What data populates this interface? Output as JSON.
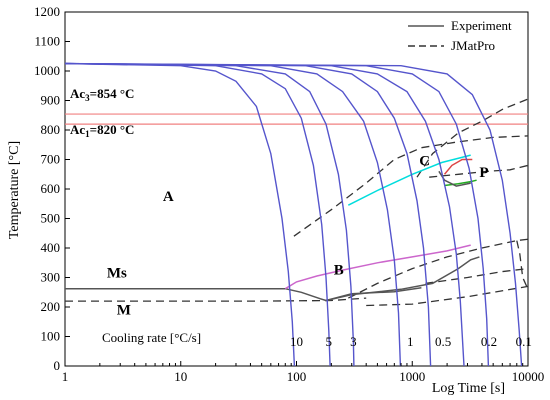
{
  "chart_data": {
    "type": "line",
    "xlabel": "Log Time [s]",
    "ylabel": "Temperature [°C]",
    "x_scale": "log",
    "xlim": [
      1,
      10000
    ],
    "ylim": [
      0,
      1200
    ],
    "x_ticks": [
      {
        "value": 1,
        "label": "1"
      },
      {
        "value": 10,
        "label": "10"
      },
      {
        "value": 100,
        "label": "100"
      },
      {
        "value": 1000,
        "label": "1000"
      },
      {
        "value": 10000,
        "label": "10000"
      }
    ],
    "y_ticks": [
      0,
      100,
      200,
      300,
      400,
      500,
      600,
      700,
      800,
      900,
      1000,
      1100,
      1200
    ],
    "grid": false,
    "legend": {
      "placement": "top-right",
      "entries": [
        {
          "label": "Experiment",
          "style": "solid",
          "color": "#555555"
        },
        {
          "label": "JMatPro",
          "style": "dashed",
          "color": "#333333"
        }
      ]
    },
    "reference_lines": [
      {
        "label": "Ac3=854 °C",
        "label_main": "Ac",
        "label_sub": "3",
        "label_value": "=854 °C",
        "y": 854,
        "color": "#f08080"
      },
      {
        "label": "Ac1=820 °C",
        "label_main": "Ac",
        "label_sub": "1",
        "label_value": "=820 °C",
        "y": 820,
        "color": "#f08080"
      }
    ],
    "region_labels": [
      {
        "text": "A",
        "x": 7,
        "y": 560
      },
      {
        "text": "C",
        "x": 1150,
        "y": 680
      },
      {
        "text": "P",
        "x": 3800,
        "y": 640
      },
      {
        "text": "B",
        "x": 210,
        "y": 310
      },
      {
        "text": "Ms",
        "x": 2.3,
        "y": 300
      },
      {
        "text": "M",
        "x": 2.8,
        "y": 175
      }
    ],
    "cooling_rate_title": "Cooling rate [°C/s]",
    "cooling_rates": [
      {
        "label": "10",
        "x": 100
      },
      {
        "label": "5",
        "x": 190
      },
      {
        "label": "3",
        "x": 310
      },
      {
        "label": "1",
        "x": 960
      },
      {
        "label": "0.5",
        "x": 1850
      },
      {
        "label": "0.2",
        "x": 4600
      },
      {
        "label": "0.1",
        "x": 9200
      }
    ],
    "cooling_curves": [
      {
        "name": "c1",
        "points": [
          [
            1,
            1025
          ],
          [
            10,
            1018
          ],
          [
            20,
            1000
          ],
          [
            30,
            965
          ],
          [
            45,
            880
          ],
          [
            60,
            720
          ],
          [
            75,
            500
          ],
          [
            85,
            320
          ],
          [
            92,
            150
          ],
          [
            96,
            0
          ]
        ]
      },
      {
        "name": "c2",
        "points": [
          [
            1,
            1025
          ],
          [
            20,
            1018
          ],
          [
            50,
            990
          ],
          [
            80,
            940
          ],
          [
            110,
            840
          ],
          [
            140,
            680
          ],
          [
            165,
            480
          ],
          [
            180,
            300
          ],
          [
            190,
            120
          ],
          [
            195,
            0
          ]
        ]
      },
      {
        "name": "c3",
        "points": [
          [
            1,
            1025
          ],
          [
            30,
            1018
          ],
          [
            80,
            990
          ],
          [
            130,
            930
          ],
          [
            180,
            820
          ],
          [
            230,
            650
          ],
          [
            270,
            460
          ],
          [
            295,
            270
          ],
          [
            310,
            80
          ],
          [
            313,
            0
          ]
        ]
      },
      {
        "name": "c4",
        "points": [
          [
            1,
            1025
          ],
          [
            60,
            1018
          ],
          [
            150,
            990
          ],
          [
            250,
            930
          ],
          [
            380,
            830
          ],
          [
            500,
            690
          ],
          [
            610,
            530
          ],
          [
            700,
            360
          ],
          [
            760,
            180
          ],
          [
            790,
            0
          ]
        ]
      },
      {
        "name": "c5",
        "points": [
          [
            1,
            1025
          ],
          [
            120,
            1018
          ],
          [
            300,
            990
          ],
          [
            500,
            930
          ],
          [
            700,
            840
          ],
          [
            900,
            720
          ],
          [
            1100,
            560
          ],
          [
            1250,
            400
          ],
          [
            1380,
            200
          ],
          [
            1440,
            0
          ]
        ]
      },
      {
        "name": "c6",
        "points": [
          [
            1,
            1025
          ],
          [
            200,
            1018
          ],
          [
            500,
            990
          ],
          [
            900,
            930
          ],
          [
            1300,
            830
          ],
          [
            1700,
            700
          ],
          [
            2100,
            540
          ],
          [
            2400,
            380
          ],
          [
            2600,
            220
          ],
          [
            2800,
            0
          ]
        ]
      },
      {
        "name": "c7",
        "points": [
          [
            1,
            1025
          ],
          [
            400,
            1018
          ],
          [
            1000,
            990
          ],
          [
            1700,
            930
          ],
          [
            2400,
            820
          ],
          [
            3100,
            670
          ],
          [
            3700,
            500
          ],
          [
            4100,
            330
          ],
          [
            4400,
            160
          ],
          [
            4550,
            0
          ]
        ]
      },
      {
        "name": "c8",
        "points": [
          [
            1,
            1025
          ],
          [
            800,
            1018
          ],
          [
            2000,
            990
          ],
          [
            3300,
            920
          ],
          [
            4700,
            800
          ],
          [
            6000,
            630
          ],
          [
            7000,
            450
          ],
          [
            7800,
            280
          ],
          [
            8400,
            120
          ],
          [
            8800,
            0
          ]
        ]
      }
    ],
    "experiment_curves": [
      {
        "name": "Ms-start",
        "color": "#555555",
        "points": [
          [
            1,
            262
          ],
          [
            80,
            262
          ],
          [
            110,
            250
          ],
          [
            160,
            228
          ],
          [
            180,
            222
          ]
        ]
      },
      {
        "name": "Ms-right",
        "color": "#555555",
        "points": [
          [
            180,
            222
          ],
          [
            300,
            245
          ],
          [
            700,
            252
          ],
          [
            1200,
            265
          ]
        ]
      },
      {
        "name": "B-start",
        "color": "#cc66cc",
        "points": [
          [
            80,
            262
          ],
          [
            100,
            285
          ],
          [
            150,
            305
          ],
          [
            250,
            325
          ],
          [
            500,
            350
          ],
          [
            1000,
            370
          ],
          [
            2000,
            390
          ],
          [
            3200,
            410
          ]
        ]
      },
      {
        "name": "B-finish",
        "color": "#555555",
        "points": [
          [
            180,
            222
          ],
          [
            300,
            242
          ],
          [
            800,
            260
          ],
          [
            1500,
            280
          ],
          [
            2500,
            330
          ],
          [
            3200,
            360
          ],
          [
            3800,
            370
          ]
        ]
      },
      {
        "name": "F-start",
        "color": "#00dddd",
        "points": [
          [
            280,
            545
          ],
          [
            500,
            595
          ],
          [
            1000,
            650
          ],
          [
            1800,
            690
          ],
          [
            3200,
            715
          ]
        ]
      },
      {
        "name": "P-start",
        "color": "#dd4444",
        "points": [
          [
            1900,
            650
          ],
          [
            2200,
            680
          ],
          [
            2700,
            700
          ],
          [
            3300,
            700
          ]
        ]
      },
      {
        "name": "P-finish",
        "color": "#22aa22",
        "points": [
          [
            1900,
            612
          ],
          [
            2500,
            618
          ],
          [
            3200,
            625
          ],
          [
            3600,
            630
          ]
        ]
      },
      {
        "name": "P-dark",
        "color": "#555555",
        "points": [
          [
            1700,
            660
          ],
          [
            1900,
            630
          ],
          [
            2400,
            610
          ],
          [
            3200,
            620
          ]
        ]
      }
    ],
    "jmatpro_curves": [
      {
        "name": "ferrite-start",
        "points": [
          [
            95,
            440
          ],
          [
            200,
            530
          ],
          [
            400,
            620
          ],
          [
            700,
            700
          ],
          [
            1200,
            740
          ],
          [
            2500,
            760
          ],
          [
            5000,
            775
          ],
          [
            10000,
            780
          ]
        ]
      },
      {
        "name": "ferrite-finish",
        "points": [
          [
            1100,
            640
          ],
          [
            1500,
            720
          ],
          [
            2500,
            790
          ],
          [
            4000,
            830
          ],
          [
            6000,
            870
          ],
          [
            10000,
            905
          ]
        ]
      },
      {
        "name": "pearlite-finish",
        "points": [
          [
            1400,
            640
          ],
          [
            2500,
            650
          ],
          [
            4500,
            660
          ],
          [
            7000,
            665
          ],
          [
            10000,
            680
          ]
        ]
      },
      {
        "name": "bainite-start",
        "points": [
          [
            280,
            230
          ],
          [
            500,
            280
          ],
          [
            1000,
            330
          ],
          [
            2000,
            370
          ],
          [
            4000,
            400
          ],
          [
            8000,
            425
          ],
          [
            10000,
            430
          ]
        ]
      },
      {
        "name": "bainite-finish",
        "points": [
          [
            1300,
            280
          ],
          [
            3000,
            300
          ],
          [
            6000,
            320
          ],
          [
            10000,
            330
          ]
        ]
      },
      {
        "name": "bainite-close",
        "points": [
          [
            8000,
            425
          ],
          [
            8500,
            380
          ],
          [
            9000,
            300
          ],
          [
            10000,
            260
          ]
        ]
      },
      {
        "name": "Ms-line",
        "points": [
          [
            1,
            220
          ],
          [
            50,
            220
          ],
          [
            200,
            222
          ],
          [
            400,
            230
          ]
        ]
      },
      {
        "name": "Mf-line",
        "points": [
          [
            400,
            205
          ],
          [
            1000,
            210
          ],
          [
            3000,
            235
          ],
          [
            10000,
            270
          ]
        ]
      }
    ]
  }
}
